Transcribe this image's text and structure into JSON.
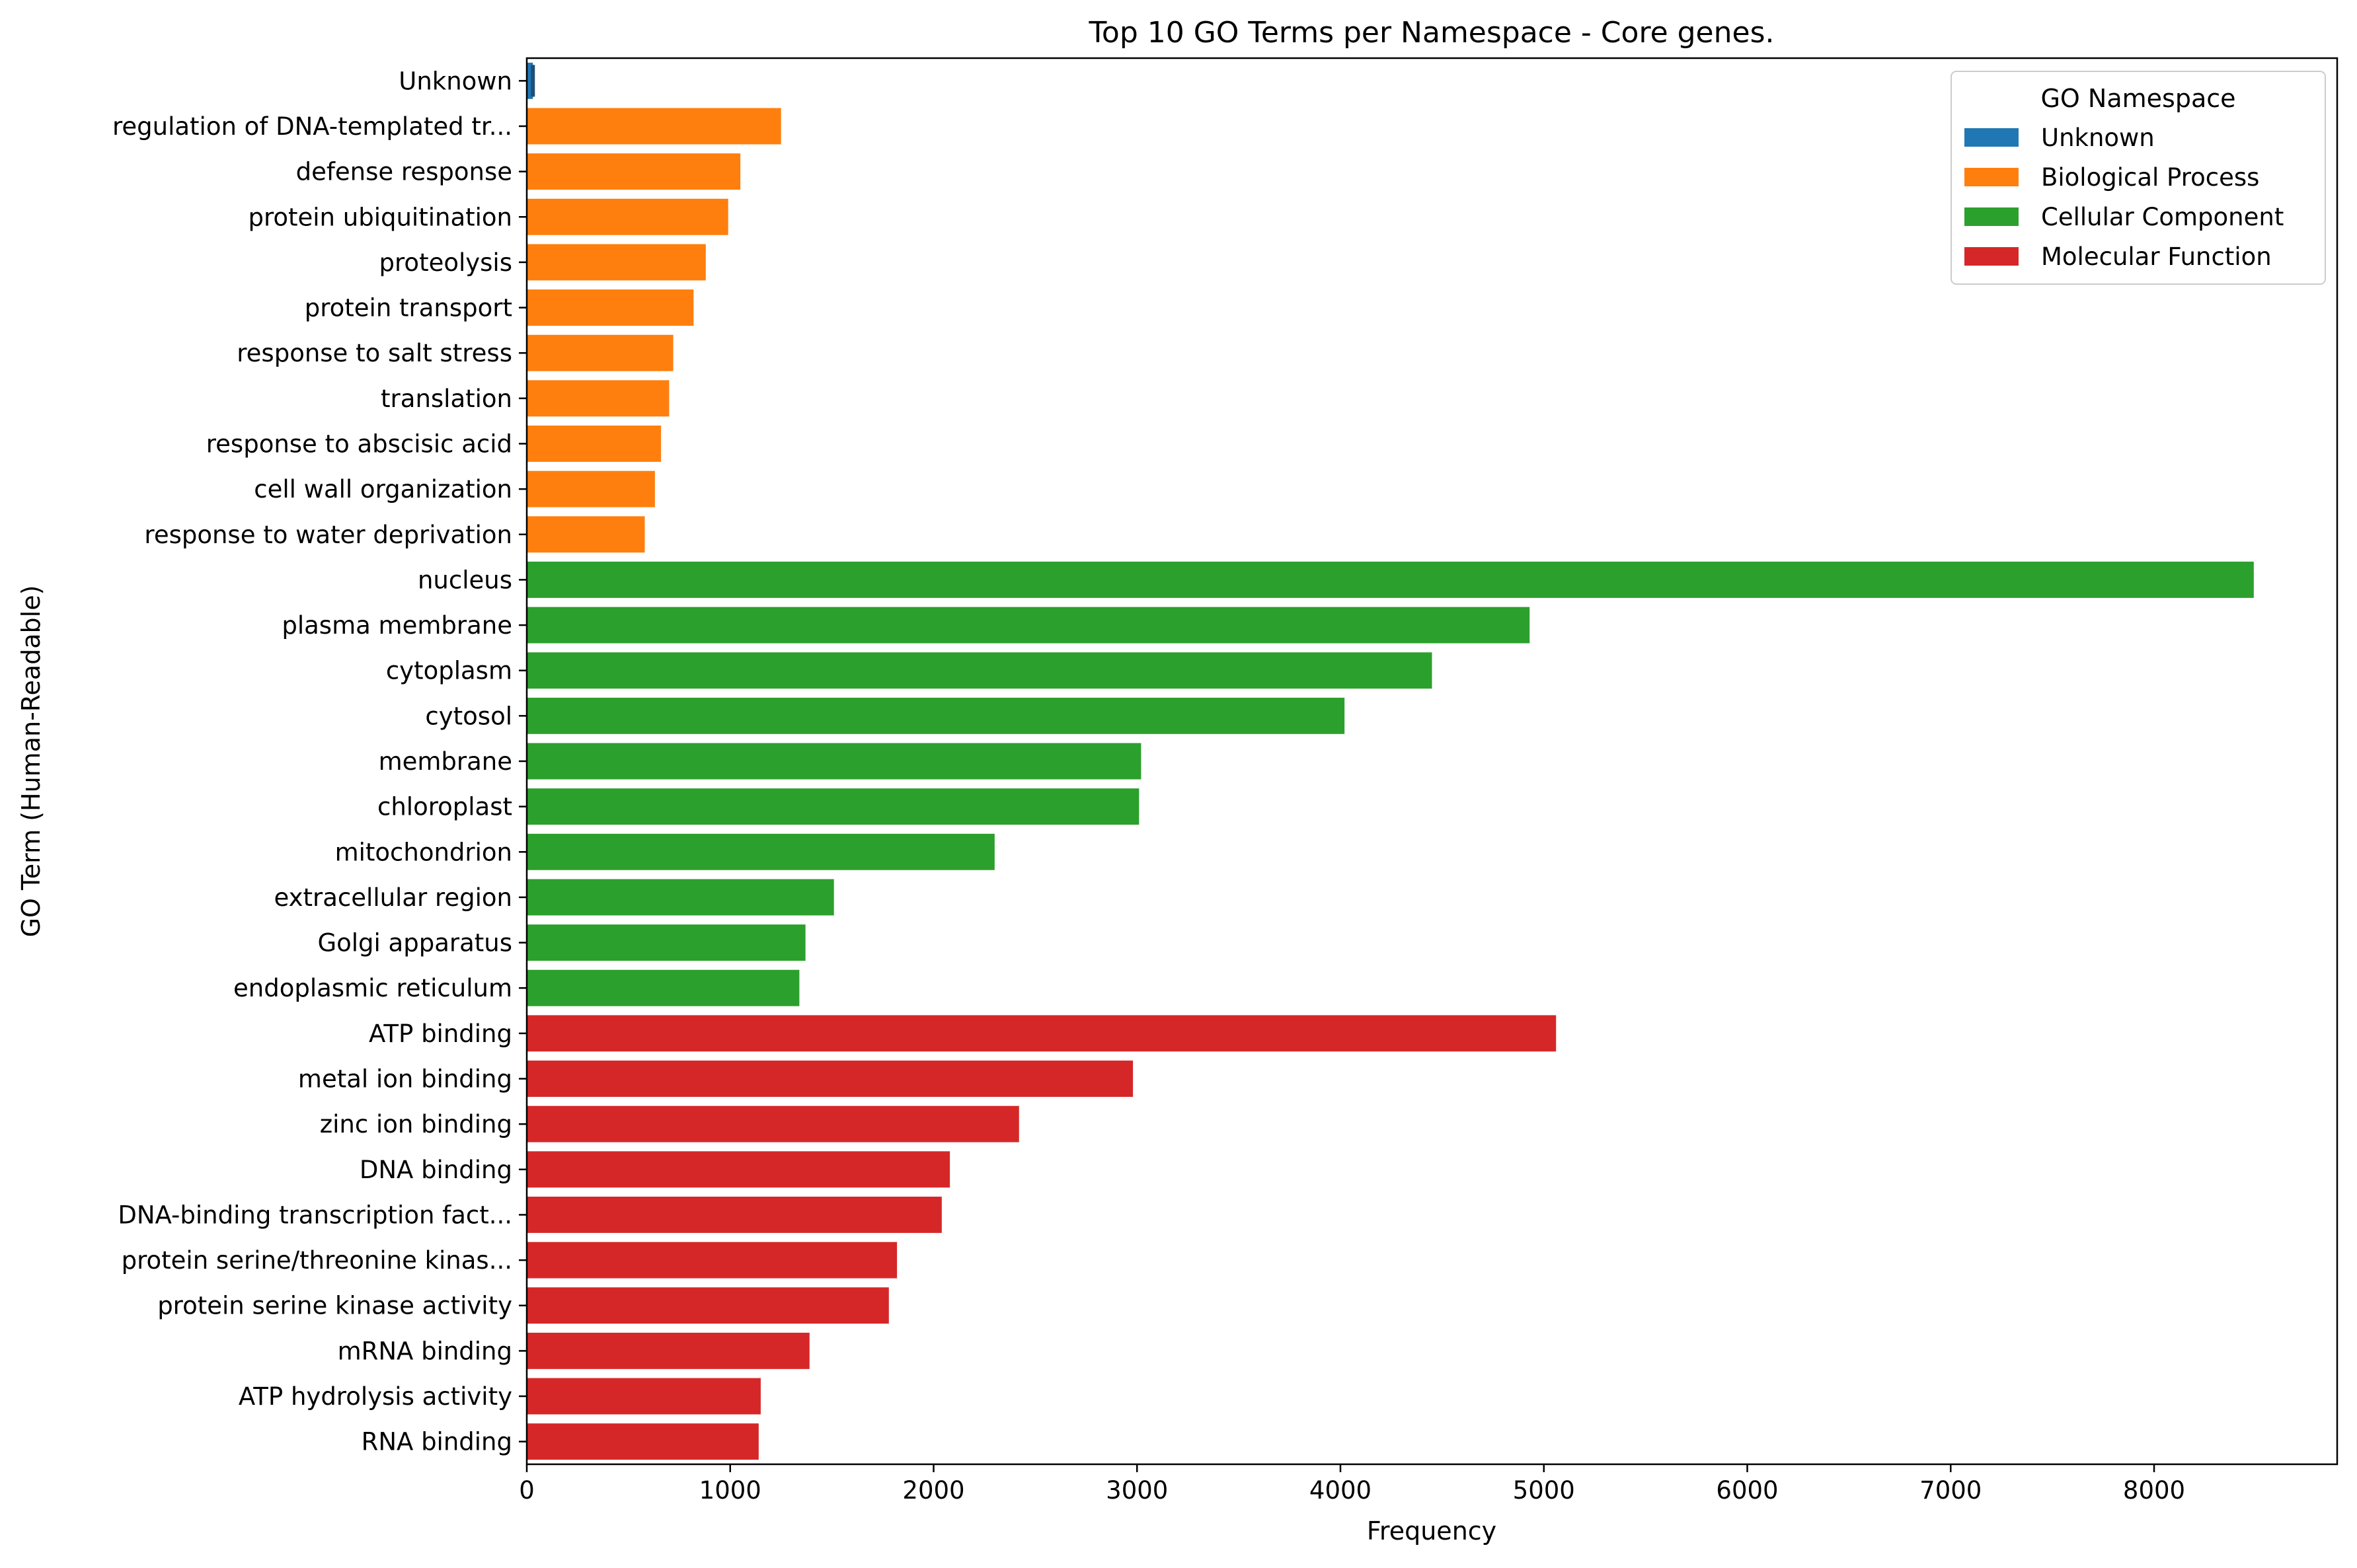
{
  "chart_data": {
    "type": "bar",
    "orientation": "horizontal",
    "title": "Top 10 GO Terms per Namespace - Core genes.",
    "xlabel": "Frequency",
    "ylabel": "GO Term (Human-Readable)",
    "xlim": [
      0,
      8900
    ],
    "xticks": [
      0,
      1000,
      2000,
      3000,
      4000,
      5000,
      6000,
      7000,
      8000
    ],
    "grid": false,
    "legend": {
      "title": "GO Namespace",
      "position": "top-right",
      "entries": [
        {
          "name": "Unknown",
          "color": "#1f77b4"
        },
        {
          "name": "Biological Process",
          "color": "#ff7f0e"
        },
        {
          "name": "Cellular Component",
          "color": "#2ca02c"
        },
        {
          "name": "Molecular Function",
          "color": "#d62728"
        }
      ]
    },
    "categories": [
      "Unknown",
      "regulation of DNA-templated tr...",
      "defense response",
      "protein ubiquitination",
      "proteolysis",
      "protein transport",
      "response to salt stress",
      "translation",
      "response to abscisic acid",
      "cell wall organization",
      "response to water deprivation",
      "nucleus",
      "plasma membrane",
      "cytoplasm",
      "cytosol",
      "membrane",
      "chloroplast",
      "mitochondrion",
      "extracellular region",
      "Golgi apparatus",
      "endoplasmic reticulum",
      "ATP binding",
      "metal ion binding",
      "zinc ion binding",
      "DNA binding",
      "DNA-binding transcription fact...",
      "protein serine/threonine kinas...",
      "protein serine kinase activity",
      "mRNA binding",
      "ATP hydrolysis activity",
      "RNA binding"
    ],
    "values": [
      30,
      1250,
      1050,
      990,
      880,
      820,
      720,
      700,
      660,
      630,
      580,
      8490,
      4930,
      4450,
      4020,
      3020,
      3010,
      2300,
      1510,
      1370,
      1340,
      5060,
      2980,
      2420,
      2080,
      2040,
      1820,
      1780,
      1390,
      1150,
      1140
    ],
    "namespaces": [
      "Unknown",
      "Biological Process",
      "Biological Process",
      "Biological Process",
      "Biological Process",
      "Biological Process",
      "Biological Process",
      "Biological Process",
      "Biological Process",
      "Biological Process",
      "Biological Process",
      "Cellular Component",
      "Cellular Component",
      "Cellular Component",
      "Cellular Component",
      "Cellular Component",
      "Cellular Component",
      "Cellular Component",
      "Cellular Component",
      "Cellular Component",
      "Cellular Component",
      "Molecular Function",
      "Molecular Function",
      "Molecular Function",
      "Molecular Function",
      "Molecular Function",
      "Molecular Function",
      "Molecular Function",
      "Molecular Function",
      "Molecular Function",
      "Molecular Function"
    ]
  }
}
